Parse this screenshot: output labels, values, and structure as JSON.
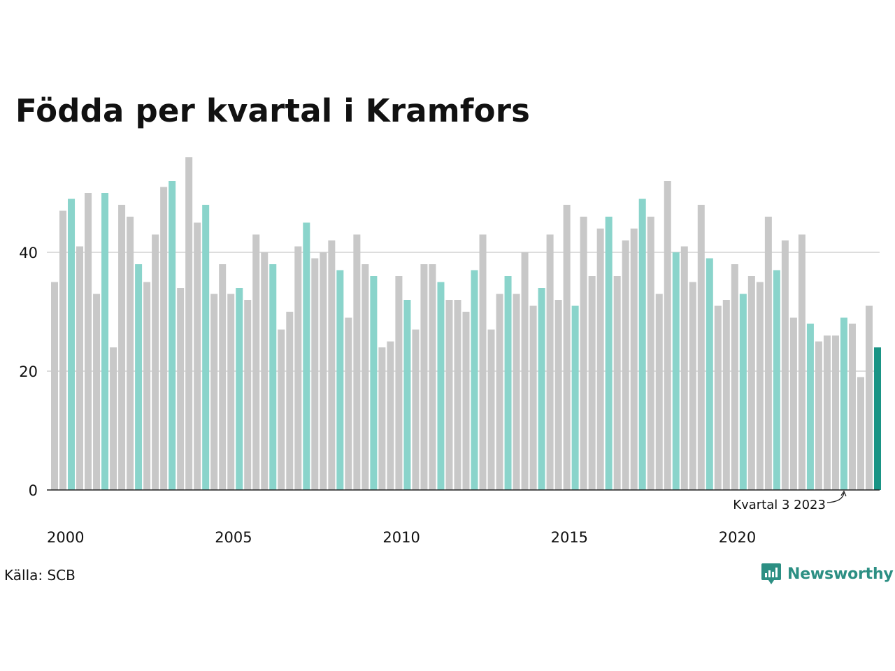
{
  "title": "Födda per kvartal i Kramfors",
  "source": "Källa: SCB",
  "logo_text": "Newsworthy",
  "colors": {
    "bar": "#c8c8c8",
    "bar_q3": "#8ad4cb",
    "bar_latest": "#1a9485",
    "grid": "#dddddd",
    "axis": "#222222",
    "text": "#111111",
    "logo": "#2c8f83"
  },
  "chart_data": {
    "type": "bar",
    "title": "Födda per kvartal i Kramfors",
    "xlabel": "",
    "ylabel": "",
    "ylim": [
      0,
      56
    ],
    "y_ticks": [
      0,
      20,
      40
    ],
    "x_tick_labels": [
      "2000",
      "2005",
      "2010",
      "2015",
      "2020"
    ],
    "grid": true,
    "annotation": {
      "text": "Kvartal 3 2023",
      "year": 2023,
      "quarter": 3
    },
    "start_year": 2000,
    "highlight_quarter": 3,
    "values": [
      35,
      47,
      49,
      41,
      50,
      33,
      50,
      24,
      48,
      46,
      38,
      35,
      43,
      51,
      52,
      34,
      56,
      45,
      48,
      33,
      38,
      33,
      34,
      32,
      43,
      40,
      38,
      27,
      30,
      41,
      45,
      39,
      40,
      42,
      37,
      29,
      43,
      38,
      36,
      24,
      25,
      36,
      32,
      27,
      38,
      38,
      35,
      32,
      32,
      30,
      37,
      43,
      27,
      33,
      36,
      33,
      40,
      31,
      34,
      43,
      32,
      48,
      31,
      46,
      36,
      44,
      46,
      36,
      42,
      44,
      49,
      46,
      33,
      52,
      40,
      41,
      35,
      48,
      39,
      31,
      32,
      38,
      33,
      36,
      35,
      46,
      37,
      42,
      29,
      43,
      28,
      25,
      26,
      26,
      29,
      28,
      19,
      31,
      24
    ]
  }
}
